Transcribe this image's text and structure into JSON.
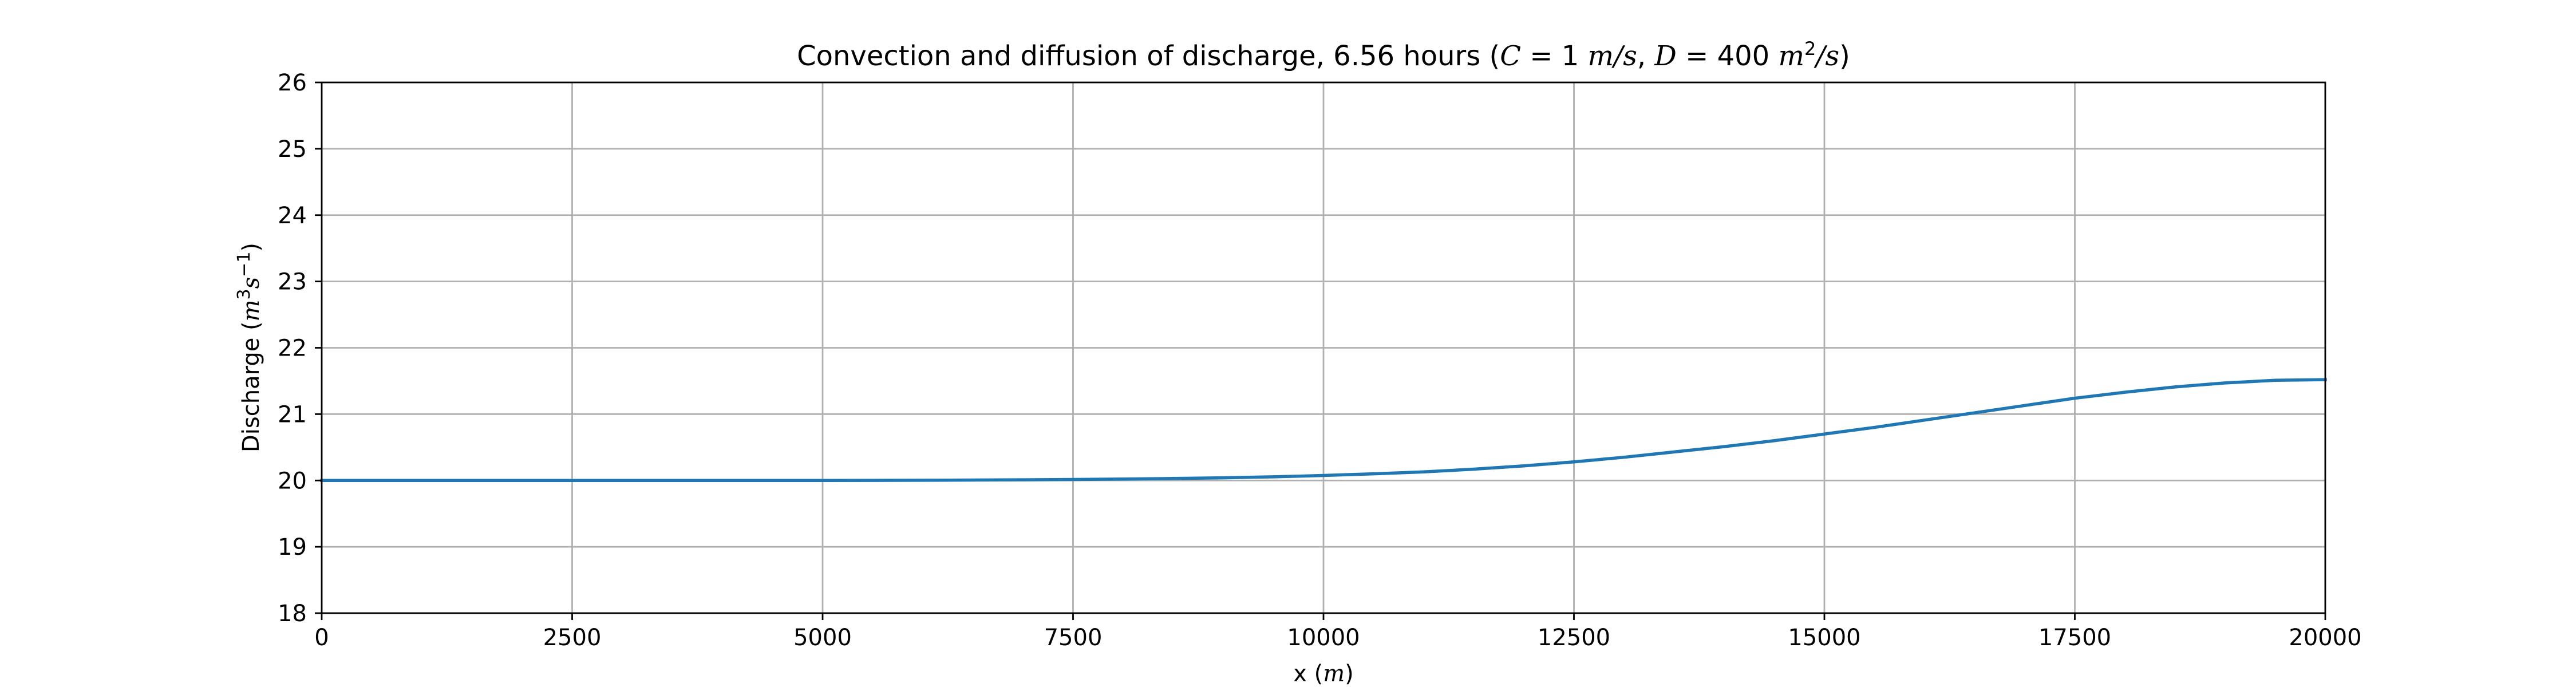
{
  "chart_data": {
    "type": "line",
    "title": {
      "prefix": "Convection and diffusion of discharge, 6.56 hours (",
      "math_c": "C",
      "eq_c": " = 1 ",
      "c_units": "m/s",
      "comma": ", ",
      "math_d": "D",
      "eq_d": " = 400 ",
      "d_units_m": "m",
      "d_units_exp": "2",
      "d_units_s": "/s",
      "suffix": ")"
    },
    "xlabel": {
      "text": "x (",
      "unit": "m",
      "close": ")"
    },
    "ylabel": {
      "text": "Discharge (",
      "unit_m": "m",
      "unit_exp": "3",
      "unit_s": "s",
      "unit_exp2": "−1",
      "close": ")"
    },
    "xlim": [
      0,
      20000
    ],
    "ylim": [
      18,
      26
    ],
    "x_ticks": [
      0,
      2500,
      5000,
      7500,
      10000,
      12500,
      15000,
      17500,
      20000
    ],
    "y_ticks": [
      18,
      19,
      20,
      21,
      22,
      23,
      24,
      25,
      26
    ],
    "grid": true,
    "line_color": "#1f77b4",
    "series": [
      {
        "x": [
          0,
          1000,
          2000,
          3000,
          4000,
          5000,
          6000,
          6500,
          7000,
          7500,
          8000,
          8500,
          9000,
          9500,
          10000,
          10500,
          11000,
          11500,
          12000,
          12500,
          13000,
          13500,
          14000,
          14500,
          15000,
          15500,
          16000,
          16500,
          17000,
          17500,
          18000,
          18500,
          19000,
          19500,
          20000
        ],
        "y": [
          20.0,
          20.0,
          20.0,
          20.0,
          20.0,
          20.0,
          20.003,
          20.006,
          20.01,
          20.015,
          20.022,
          20.03,
          20.04,
          20.055,
          20.075,
          20.1,
          20.13,
          20.17,
          20.22,
          20.28,
          20.35,
          20.43,
          20.51,
          20.6,
          20.7,
          20.8,
          20.91,
          21.02,
          21.13,
          21.24,
          21.33,
          21.41,
          21.47,
          21.51,
          21.52
        ]
      }
    ]
  }
}
